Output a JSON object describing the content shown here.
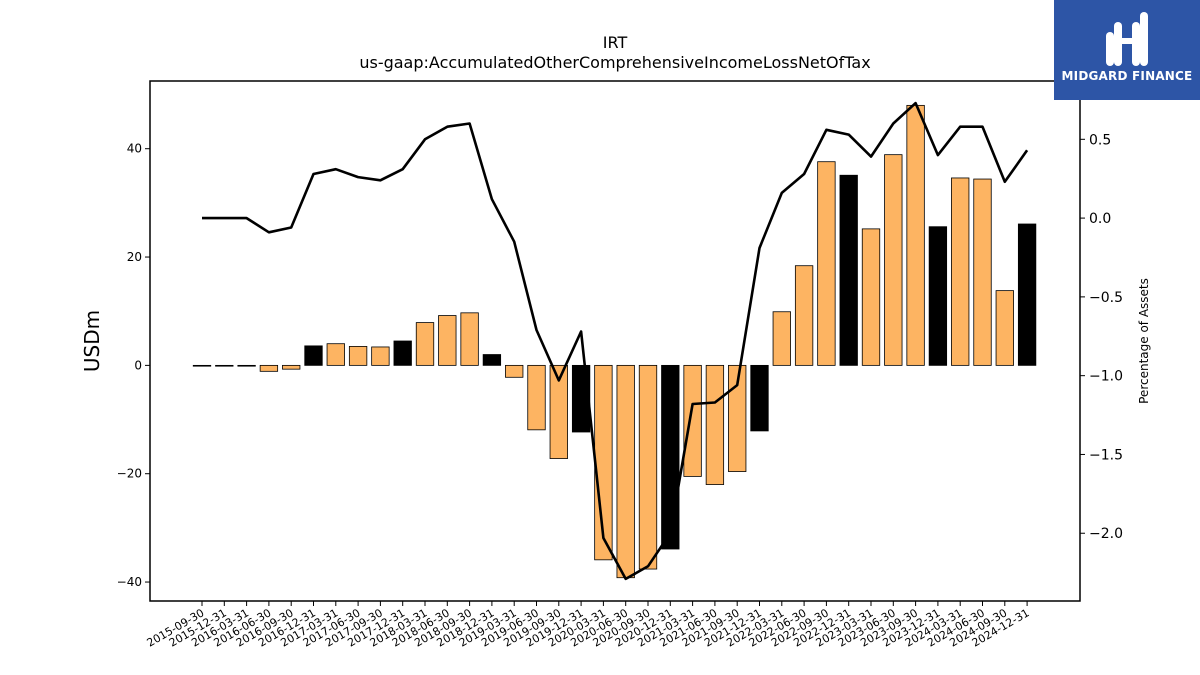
{
  "chart_data": {
    "type": "bar",
    "title": "IRT",
    "subtitle": "us-gaap:AccumulatedOtherComprehensiveIncomeLossNetOfTax",
    "xlabel": "",
    "ylabel": "USDm",
    "y2label": "Percentage of Assets",
    "ylim": [
      -43.5,
      52.5
    ],
    "y2lim": [
      -2.43,
      0.87
    ],
    "yticks": [
      -40,
      -20,
      0,
      20,
      40
    ],
    "yticklabels": [
      "−40",
      "−20",
      "0",
      "20",
      "40"
    ],
    "y2ticks": [
      -2.0,
      -1.5,
      -1.0,
      -0.5,
      0.0,
      0.5
    ],
    "y2ticklabels": [
      "−2.0",
      "−1.5",
      "−1.0",
      "−0.5",
      "0.0",
      "0.5"
    ],
    "grid": false,
    "categories": [
      "2015-09-30",
      "2015-12-31",
      "2016-03-31",
      "2016-06-30",
      "2016-09-30",
      "2016-12-31",
      "2017-03-31",
      "2017-06-30",
      "2017-09-30",
      "2017-12-31",
      "2018-03-31",
      "2018-06-30",
      "2018-09-30",
      "2018-12-31",
      "2019-03-31",
      "2019-06-30",
      "2019-09-30",
      "2019-12-31",
      "2020-03-31",
      "2020-06-30",
      "2020-09-30",
      "2020-12-31",
      "2021-03-31",
      "2021-06-30",
      "2021-09-30",
      "2021-12-31",
      "2022-03-31",
      "2022-06-30",
      "2022-09-30",
      "2022-12-31",
      "2023-03-31",
      "2023-06-30",
      "2023-09-30",
      "2023-12-31",
      "2024-03-31",
      "2024-06-30",
      "2024-09-30",
      "2024-12-31"
    ],
    "series": [
      {
        "type": "bar",
        "values": [
          -0.1,
          -0.1,
          -0.1,
          -1.1,
          -0.7,
          3.6,
          4.0,
          3.5,
          3.4,
          4.5,
          7.9,
          9.2,
          9.7,
          2.0,
          -2.2,
          -11.9,
          -17.2,
          -12.3,
          -35.9,
          -39.2,
          -37.6,
          -33.9,
          -20.5,
          -22.0,
          -19.6,
          -12.1,
          9.9,
          18.4,
          37.6,
          35.1,
          25.2,
          38.9,
          48.0,
          25.6,
          34.6,
          34.4,
          13.8,
          26.1
        ]
      },
      {
        "type": "line",
        "axis": "right",
        "values": [
          0.0,
          0.0,
          0.0,
          -0.09,
          -0.06,
          0.28,
          0.31,
          0.26,
          0.24,
          0.31,
          0.5,
          0.58,
          0.6,
          0.12,
          -0.15,
          -0.71,
          -1.03,
          -0.72,
          -2.03,
          -2.29,
          -2.21,
          -2.0,
          -1.18,
          -1.17,
          -1.06,
          -0.19,
          0.16,
          0.28,
          0.56,
          0.53,
          0.39,
          0.6,
          0.73,
          0.4,
          0.58,
          0.58,
          0.23,
          0.43
        ]
      }
    ],
    "colors": {
      "bar_default": "#fdb462",
      "bar_quarter_end": "#000000",
      "line": "#000000"
    }
  },
  "logo": {
    "text": "MIDGARD FINANCE",
    "icon": "midgard-logo-icon",
    "background": "#2d55a6"
  }
}
